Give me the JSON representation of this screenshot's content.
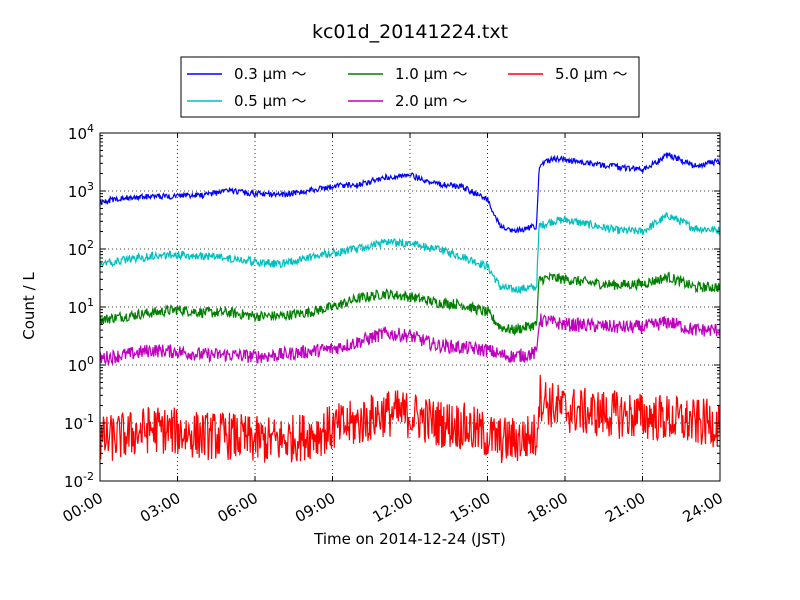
{
  "chart_data": {
    "type": "line",
    "title": "kc01d_20141224.txt",
    "xlabel": "Time on 2014-12-24 (JST)",
    "ylabel": "Count / L",
    "y_scale": "log",
    "xlim_hours": [
      0,
      24
    ],
    "ylim": [
      0.01,
      10000
    ],
    "grid": true,
    "legend_position": "top-center",
    "x_tick_labels": [
      "00:00",
      "03:00",
      "06:00",
      "09:00",
      "12:00",
      "15:00",
      "18:00",
      "21:00",
      "24:00"
    ],
    "y_tick_labels": [
      {
        "base": "10",
        "exp": "-2",
        "value": 0.01
      },
      {
        "base": "10",
        "exp": "-1",
        "value": 0.1
      },
      {
        "base": "10",
        "exp": "0",
        "value": 1
      },
      {
        "base": "10",
        "exp": "1",
        "value": 10
      },
      {
        "base": "10",
        "exp": "2",
        "value": 100
      },
      {
        "base": "10",
        "exp": "3",
        "value": 1000
      },
      {
        "base": "10",
        "exp": "4",
        "value": 10000
      }
    ],
    "x_hours": [
      0,
      1,
      2,
      3,
      4,
      5,
      6,
      7,
      8,
      9,
      10,
      11,
      12,
      13,
      14,
      15,
      15.5,
      16,
      16.9,
      17,
      17.5,
      18,
      19,
      20,
      21,
      22,
      23,
      24
    ],
    "series": [
      {
        "name": "0.3 µm ～",
        "color": "#0000ff",
        "noise": 0.05,
        "values": [
          650,
          780,
          800,
          820,
          850,
          1000,
          900,
          850,
          1000,
          1200,
          1300,
          1700,
          1900,
          1300,
          1200,
          700,
          240,
          200,
          250,
          2800,
          3500,
          3500,
          3000,
          2600,
          2300,
          4200,
          2700,
          3300
        ]
      },
      {
        "name": "0.5 µm ～",
        "color": "#00bfbf",
        "noise": 0.07,
        "values": [
          55,
          65,
          75,
          80,
          75,
          70,
          60,
          55,
          70,
          85,
          100,
          130,
          125,
          100,
          75,
          50,
          22,
          20,
          22,
          250,
          300,
          320,
          260,
          210,
          200,
          380,
          230,
          210
        ]
      },
      {
        "name": "1.0 µm ～",
        "color": "#008000",
        "noise": 0.09,
        "values": [
          6,
          7,
          8,
          9,
          8,
          8,
          7,
          7,
          8,
          10,
          14,
          17,
          15,
          12,
          11,
          8,
          4.5,
          4,
          5,
          30,
          32,
          30,
          26,
          24,
          25,
          33,
          22,
          22
        ]
      },
      {
        "name": "2.0 µm ～",
        "color": "#bf00bf",
        "noise": 0.12,
        "values": [
          1.3,
          1.5,
          1.8,
          1.7,
          1.5,
          1.5,
          1.4,
          1.5,
          1.7,
          1.9,
          2.5,
          3.5,
          3.2,
          2.2,
          2,
          1.8,
          1.5,
          1.4,
          1.6,
          6,
          5.5,
          5,
          4.8,
          4.5,
          4.5,
          5.5,
          4,
          4
        ]
      },
      {
        "name": "5.0 µm ～",
        "color": "#ff0000",
        "noise": 0.42,
        "values": [
          0.05,
          0.06,
          0.08,
          0.07,
          0.06,
          0.06,
          0.05,
          0.05,
          0.06,
          0.08,
          0.1,
          0.15,
          0.14,
          0.1,
          0.09,
          0.06,
          0.05,
          0.05,
          0.06,
          0.3,
          0.2,
          0.17,
          0.15,
          0.14,
          0.13,
          0.12,
          0.1,
          0.1
        ]
      }
    ]
  }
}
